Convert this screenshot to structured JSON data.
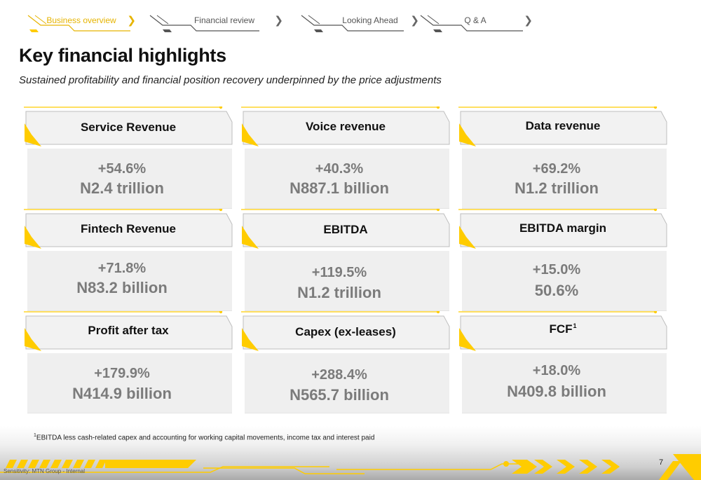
{
  "nav": {
    "tabs": [
      {
        "label": "Business overview",
        "active": true
      },
      {
        "label": "Financial review",
        "active": false
      },
      {
        "label": "Looking Ahead",
        "active": false
      },
      {
        "label": "Q & A",
        "active": false
      }
    ]
  },
  "header": {
    "title": "Key financial highlights",
    "subtitle": "Sustained profitability and financial position recovery underpinned by the price adjustments"
  },
  "cards": [
    {
      "title": "Service Revenue",
      "growth": "+54.6%",
      "value": "N2.4 trillion"
    },
    {
      "title": "Voice revenue",
      "growth": "+40.3%",
      "value": "N887.1 billion"
    },
    {
      "title": "Data revenue",
      "growth": "+69.2%",
      "value": "N1.2 trillion"
    },
    {
      "title": "Fintech Revenue",
      "growth": "+71.8%",
      "value": "N83.2 billion"
    },
    {
      "title": "EBITDA",
      "growth": "+119.5%",
      "value": "N1.2 trillion"
    },
    {
      "title": "EBITDA margin",
      "growth": "+15.0%",
      "value": "50.6%"
    },
    {
      "title": "Profit after tax",
      "growth": "+179.9%",
      "value": "N414.9 billion"
    },
    {
      "title": "Capex (ex-leases)",
      "growth": "+288.4%",
      "value": "N565.7 billion"
    },
    {
      "title": "FCF",
      "title_sup": "1",
      "growth": "+18.0%",
      "value": "N409.8 billion"
    }
  ],
  "footer": {
    "footnote_mark": "1",
    "footnote": "EBITDA less cash-related capex and accounting for working capital movements, income tax and interest paid",
    "page_number": "7",
    "classification": "Sensitivity: MTN Group - Internal"
  },
  "colors": {
    "accent_yellow": "#ffcc00",
    "value_grey": "#7b7b7b",
    "card_bg": "#efefef"
  }
}
